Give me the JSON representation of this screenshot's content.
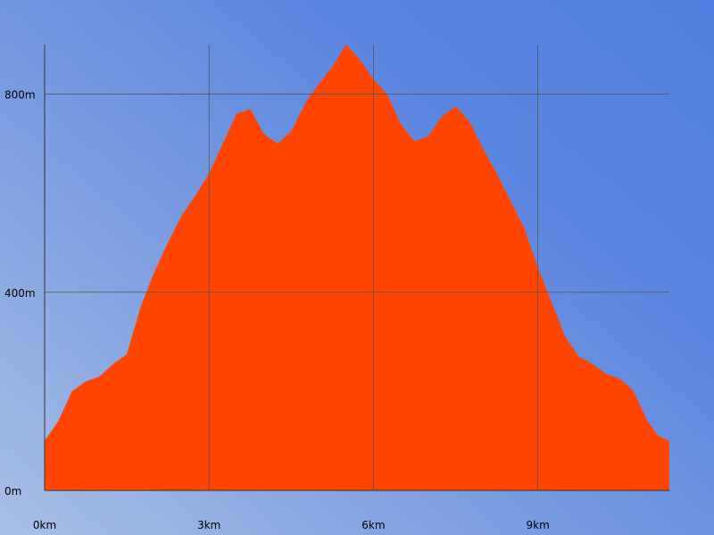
{
  "chart_data": {
    "type": "area",
    "title": "",
    "xlabel": "",
    "ylabel": "",
    "xlim": [
      0,
      11.4
    ],
    "ylim": [
      0,
      900
    ],
    "grid": true,
    "legend": "none",
    "x_ticks": [
      {
        "value": 0,
        "label": "0km"
      },
      {
        "value": 3,
        "label": "3km"
      },
      {
        "value": 6,
        "label": "6km"
      },
      {
        "value": 9,
        "label": "9km"
      }
    ],
    "y_ticks": [
      {
        "value": 0,
        "label": "0m"
      },
      {
        "value": 400,
        "label": "400m"
      },
      {
        "value": 800,
        "label": "800m"
      }
    ],
    "series": [
      {
        "color": "#ff4500",
        "x": [
          0,
          0.25,
          0.5,
          0.75,
          1.0,
          1.25,
          1.5,
          1.75,
          2.0,
          2.25,
          2.5,
          2.75,
          3.0,
          3.25,
          3.5,
          3.75,
          4.0,
          4.25,
          4.5,
          4.75,
          5.0,
          5.25,
          5.5,
          5.75,
          6.0,
          6.25,
          6.5,
          6.75,
          7.0,
          7.25,
          7.5,
          7.75,
          8.0,
          8.25,
          8.5,
          8.75,
          9.0,
          9.25,
          9.5,
          9.75,
          10.0,
          10.25,
          10.5,
          10.75,
          11.0,
          11.2,
          11.4
        ],
        "values": [
          100,
          140,
          200,
          220,
          230,
          255,
          275,
          370,
          440,
          500,
          555,
          595,
          640,
          700,
          760,
          770,
          720,
          700,
          725,
          780,
          820,
          855,
          900,
          870,
          830,
          800,
          740,
          705,
          715,
          755,
          775,
          745,
          690,
          640,
          585,
          530,
          450,
          380,
          310,
          270,
          255,
          235,
          225,
          200,
          140,
          110,
          100
        ]
      }
    ]
  }
}
